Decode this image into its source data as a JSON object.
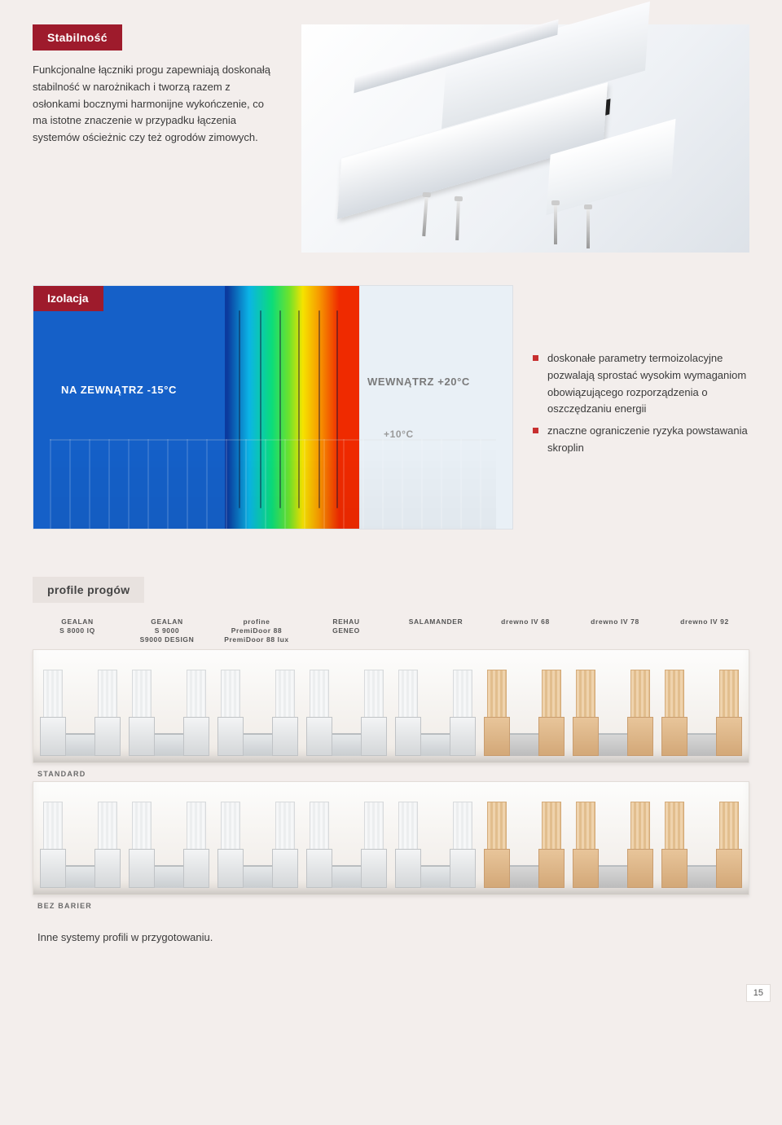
{
  "colors": {
    "brand_red": "#9e1b2c",
    "page_bg": "#f3eeec",
    "text": "#3a3a3a",
    "bullet": "#c72f2f",
    "thermal_blue": "#1560c8",
    "gradient_stops": [
      "#0b3a9e",
      "#0bb4e6",
      "#0bdc7a",
      "#6fe22b",
      "#f5e300",
      "#f79a00",
      "#ef2a00"
    ]
  },
  "sections": {
    "stability": {
      "heading": "Stabilność",
      "body": "Funkcjonalne łączniki progu zapewniają doskonałą stabilność w narożnikach i tworzą razem z osłonkami bocznymi harmonijne wykończenie, co ma istotne znaczenie w przypadku łączenia systemów ościeżnic czy też ogrodów zimowych."
    },
    "isolation": {
      "heading": "Izolacja",
      "labels": {
        "outside": "NA ZEWNĄTRZ  -15°C",
        "inside": "WEWNĄTRZ  +20°C",
        "midtemp": "+10°C"
      },
      "bullets": [
        "doskonałe parametry termoizolacyjne pozwalają sprostać wysokim wymaganiom obowiązującego rozporządzenia o oszczędzaniu energii",
        "znaczne ograniczenie ryzyka powstawania skroplin"
      ]
    },
    "profiles": {
      "heading": "profile progów",
      "columns": [
        {
          "line1": "GEALAN",
          "line2": "S 8000 IQ"
        },
        {
          "line1": "GEALAN",
          "line2": "S 9000",
          "line3": "S9000 DESIGN"
        },
        {
          "line1": "profine",
          "line2": "PremiDoor 88",
          "line3": "PremiDoor 88 lux"
        },
        {
          "line1": "REHAU",
          "line2": "GENEO"
        },
        {
          "line1": "SALAMANDER",
          "line2": ""
        },
        {
          "line1": "drewno IV 68",
          "line2": ""
        },
        {
          "line1": "drewno IV 78",
          "line2": ""
        },
        {
          "line1": "drewno IV 92",
          "line2": ""
        }
      ],
      "shelf_a_label": "STANDARD",
      "shelf_b_label": "BEZ BARIER",
      "wood_from_index": 5,
      "footer_note": "Inne systemy profili w przygotowaniu."
    }
  },
  "page_number": "15"
}
